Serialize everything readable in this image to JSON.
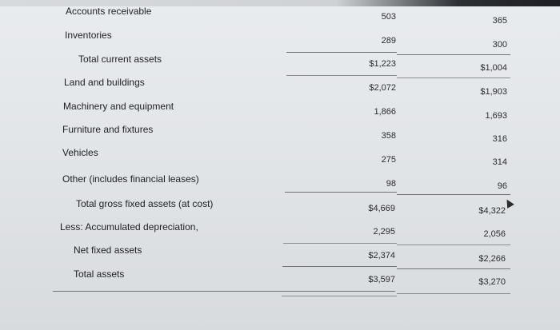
{
  "rows": [
    {
      "label": "Accounts receivable",
      "v1": "503",
      "v2": "365"
    },
    {
      "label": "Inventories",
      "v1": "289",
      "v2": "300"
    },
    {
      "label": "Total current assets",
      "v1": "$1,223",
      "v2": "$1,004"
    },
    {
      "label": "Land and buildings",
      "v1": "$2,072",
      "v2": "$1,903"
    },
    {
      "label": "Machinery and equipment",
      "v1": "1,866",
      "v2": "1,693"
    },
    {
      "label": "Furniture and fixtures",
      "v1": "358",
      "v2": "316"
    },
    {
      "label": "Vehicles",
      "v1": "275",
      "v2": "314"
    },
    {
      "label": "Other (includes financial leases)",
      "v1": "98",
      "v2": "96"
    },
    {
      "label": "Total gross fixed assets (at cost)",
      "v1": "$4,669",
      "v2": "$4,322"
    },
    {
      "label": "Less: Accumulated depreciation",
      "v1": "2,295",
      "v2": "2,056"
    },
    {
      "label": "Net fixed assets",
      "v1": "$2,374",
      "v2": "$2,266"
    },
    {
      "label": "Total assets",
      "v1": "$3,597",
      "v2": "$3,270"
    }
  ],
  "comma_mark": ","
}
